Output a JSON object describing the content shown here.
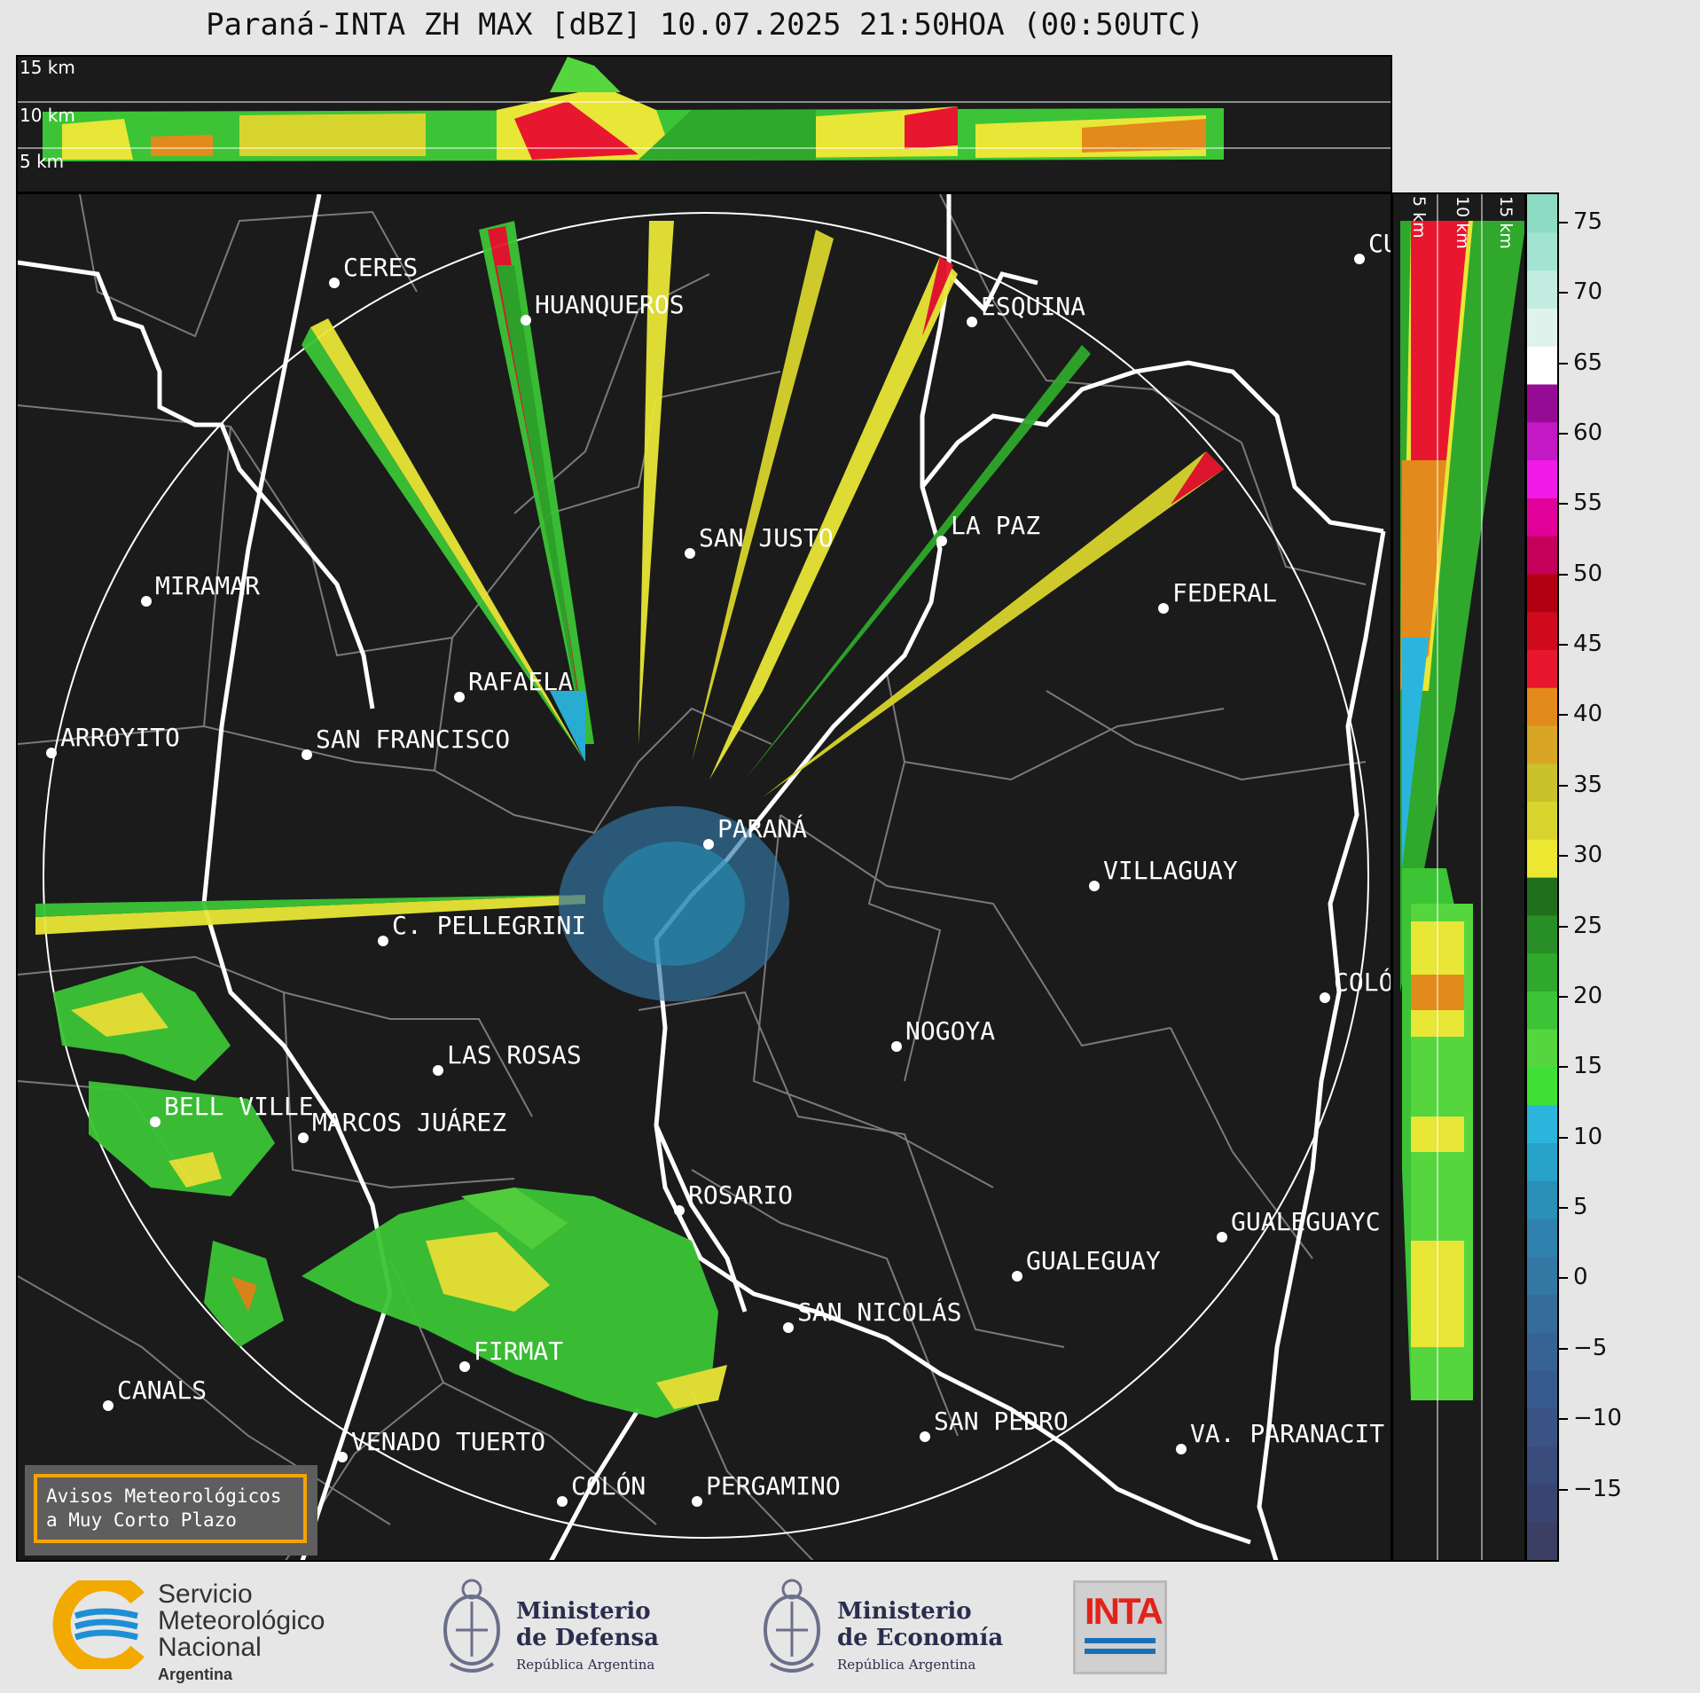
{
  "title": "Paraná-INTA ZH MAX [dBZ] 10.07.2025 21:50HOA (00:50UTC)",
  "top_panel": {
    "height_labels": [
      "15 km",
      "10 km",
      "5 km"
    ]
  },
  "side_panel": {
    "height_labels": [
      "5 km",
      "10 km",
      "15 km"
    ]
  },
  "colorbar": {
    "unit": "dBZ",
    "ticks": [
      "75",
      "70",
      "65",
      "60",
      "55",
      "50",
      "45",
      "40",
      "35",
      "30",
      "25",
      "20",
      "15",
      "10",
      "5",
      "0",
      "−5",
      "−10",
      "−15"
    ],
    "range": [
      -20,
      77
    ],
    "colors": [
      "#3a3f63",
      "#394570",
      "#3a4c7c",
      "#3a5384",
      "#375a8d",
      "#376394",
      "#356c9b",
      "#3377a4",
      "#2f82ad",
      "#2b90b8",
      "#27a2c8",
      "#2bb5dc",
      "#3ee036",
      "#55d63f",
      "#3cc436",
      "#2fa82c",
      "#278f25",
      "#1f6f1c",
      "#ece831",
      "#d8d42e",
      "#c9c22a",
      "#d8a624",
      "#e28a1c",
      "#e8162f",
      "#cf0a1c",
      "#b10011",
      "#c4005a",
      "#e1009a",
      "#f11ae8",
      "#c318c4",
      "#960b96",
      "#ffffff",
      "#dff3ec",
      "#c3ece0",
      "#a3e3d1",
      "#8ddbc3"
    ]
  },
  "map": {
    "cities": [
      {
        "name": "CERES"
      },
      {
        "name": "HUANQUEROS"
      },
      {
        "name": "ESQUINA"
      },
      {
        "name": "CU"
      },
      {
        "name": "SAN JUSTO"
      },
      {
        "name": "LA PAZ"
      },
      {
        "name": "MIRAMAR"
      },
      {
        "name": "FEDERAL"
      },
      {
        "name": "RAFAELA"
      },
      {
        "name": "ARROYITO"
      },
      {
        "name": "SAN FRANCISCO"
      },
      {
        "name": "PARANÁ"
      },
      {
        "name": "VILLAGUAY"
      },
      {
        "name": "C. PELLEGRINI"
      },
      {
        "name": "COLÓ"
      },
      {
        "name": "NOGOYA"
      },
      {
        "name": "LAS ROSAS"
      },
      {
        "name": "BELL VILLE"
      },
      {
        "name": "MARCOS JUÁREZ"
      },
      {
        "name": "ROSARIO"
      },
      {
        "name": "GUALEGUAYC"
      },
      {
        "name": "GUALEGUAY"
      },
      {
        "name": "SAN NICOLÁS"
      },
      {
        "name": "FIRMAT"
      },
      {
        "name": "CANALS"
      },
      {
        "name": "SAN PEDRO"
      },
      {
        "name": "VENADO TUERTO"
      },
      {
        "name": "VA. PARANACIT"
      },
      {
        "name": "COLÓN"
      },
      {
        "name": "PERGAMINO"
      }
    ]
  },
  "warning_box": {
    "line1": "Avisos Meteorológicos",
    "line2": "a Muy Corto Plazo"
  },
  "logos": {
    "smn": {
      "line1": "Servicio",
      "line2": "Meteorológico",
      "line3": "Nacional",
      "line4": "Argentina"
    },
    "defensa": {
      "line1": "Ministerio",
      "line2": "de Defensa",
      "line3": "República Argentina"
    },
    "economia": {
      "line1": "Ministerio",
      "line2": "de Economía",
      "line3": "República Argentina"
    },
    "inta": {
      "text": "INTA"
    }
  }
}
